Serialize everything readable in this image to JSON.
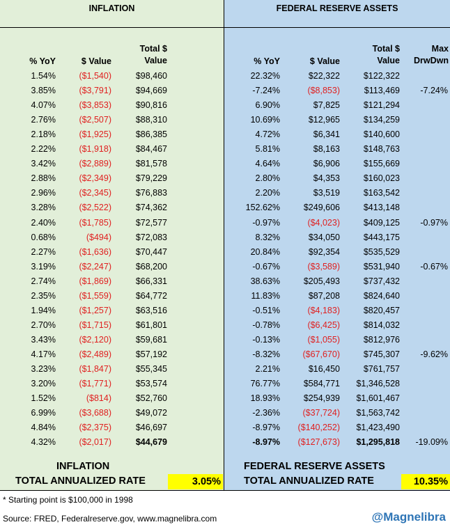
{
  "inflation": {
    "section_title": "INFLATION",
    "headers": {
      "yoy": "% YoY",
      "value": "$ Value",
      "total": [
        "Total $",
        "Value"
      ]
    },
    "footer": {
      "title": "INFLATION",
      "label": "TOTAL ANNUALIZED RATE",
      "rate": "3.05%"
    }
  },
  "fed": {
    "section_title": "FEDERAL RESERVE ASSETS",
    "headers": {
      "yoy": "% YoY",
      "value": "$ Value",
      "total": [
        "Total $",
        "Value"
      ],
      "maxdd": [
        "Max",
        "DrwDwn"
      ]
    },
    "footer": {
      "title": "FEDERAL RESERVE ASSETS",
      "label": "TOTAL ANNUALIZED RATE",
      "rate": "10.35%"
    }
  },
  "notes": {
    "starting_point": "* Starting point is $100,000 in 1998",
    "source": "Source: FRED, Federalreserve.gov, www.magnelibra.com",
    "brand": "@Magnelibra"
  },
  "chart_data": {
    "type": "table",
    "columns": [
      "Inflation % YoY",
      "Inflation $ Value",
      "Inflation Total $ Value",
      "Fed % YoY",
      "Fed $ Value",
      "Fed Total $ Value",
      "Max DrwDwn"
    ],
    "rows": [
      [
        "1.54%",
        "($1,540)",
        "$98,460",
        "22.32%",
        "$22,322",
        "$122,322",
        ""
      ],
      [
        "3.85%",
        "($3,791)",
        "$94,669",
        "-7.24%",
        "($8,853)",
        "$113,469",
        "-7.24%"
      ],
      [
        "4.07%",
        "($3,853)",
        "$90,816",
        "6.90%",
        "$7,825",
        "$121,294",
        ""
      ],
      [
        "2.76%",
        "($2,507)",
        "$88,310",
        "10.69%",
        "$12,965",
        "$134,259",
        ""
      ],
      [
        "2.18%",
        "($1,925)",
        "$86,385",
        "4.72%",
        "$6,341",
        "$140,600",
        ""
      ],
      [
        "2.22%",
        "($1,918)",
        "$84,467",
        "5.81%",
        "$8,163",
        "$148,763",
        ""
      ],
      [
        "3.42%",
        "($2,889)",
        "$81,578",
        "4.64%",
        "$6,906",
        "$155,669",
        ""
      ],
      [
        "2.88%",
        "($2,349)",
        "$79,229",
        "2.80%",
        "$4,353",
        "$160,023",
        ""
      ],
      [
        "2.96%",
        "($2,345)",
        "$76,883",
        "2.20%",
        "$3,519",
        "$163,542",
        ""
      ],
      [
        "3.28%",
        "($2,522)",
        "$74,362",
        "152.62%",
        "$249,606",
        "$413,148",
        ""
      ],
      [
        "2.40%",
        "($1,785)",
        "$72,577",
        "-0.97%",
        "($4,023)",
        "$409,125",
        "-0.97%"
      ],
      [
        "0.68%",
        "($494)",
        "$72,083",
        "8.32%",
        "$34,050",
        "$443,175",
        ""
      ],
      [
        "2.27%",
        "($1,636)",
        "$70,447",
        "20.84%",
        "$92,354",
        "$535,529",
        ""
      ],
      [
        "3.19%",
        "($2,247)",
        "$68,200",
        "-0.67%",
        "($3,589)",
        "$531,940",
        "-0.67%"
      ],
      [
        "2.74%",
        "($1,869)",
        "$66,331",
        "38.63%",
        "$205,493",
        "$737,432",
        ""
      ],
      [
        "2.35%",
        "($1,559)",
        "$64,772",
        "11.83%",
        "$87,208",
        "$824,640",
        ""
      ],
      [
        "1.94%",
        "($1,257)",
        "$63,516",
        "-0.51%",
        "($4,183)",
        "$820,457",
        ""
      ],
      [
        "2.70%",
        "($1,715)",
        "$61,801",
        "-0.78%",
        "($6,425)",
        "$814,032",
        ""
      ],
      [
        "3.43%",
        "($2,120)",
        "$59,681",
        "-0.13%",
        "($1,055)",
        "$812,976",
        ""
      ],
      [
        "4.17%",
        "($2,489)",
        "$57,192",
        "-8.32%",
        "($67,670)",
        "$745,307",
        "-9.62%"
      ],
      [
        "3.23%",
        "($1,847)",
        "$55,345",
        "2.21%",
        "$16,450",
        "$761,757",
        ""
      ],
      [
        "3.20%",
        "($1,771)",
        "$53,574",
        "76.77%",
        "$584,771",
        "$1,346,528",
        ""
      ],
      [
        "1.52%",
        "($814)",
        "$52,760",
        "18.93%",
        "$254,939",
        "$1,601,467",
        ""
      ],
      [
        "6.99%",
        "($3,688)",
        "$49,072",
        "-2.36%",
        "($37,724)",
        "$1,563,742",
        ""
      ],
      [
        "4.84%",
        "($2,375)",
        "$46,697",
        "-8.97%",
        "($140,252)",
        "$1,423,490",
        ""
      ],
      [
        "4.32%",
        "($2,017)",
        "$44,679",
        "-8.97%",
        "($127,673)",
        "$1,295,818",
        "-19.09%"
      ]
    ]
  }
}
